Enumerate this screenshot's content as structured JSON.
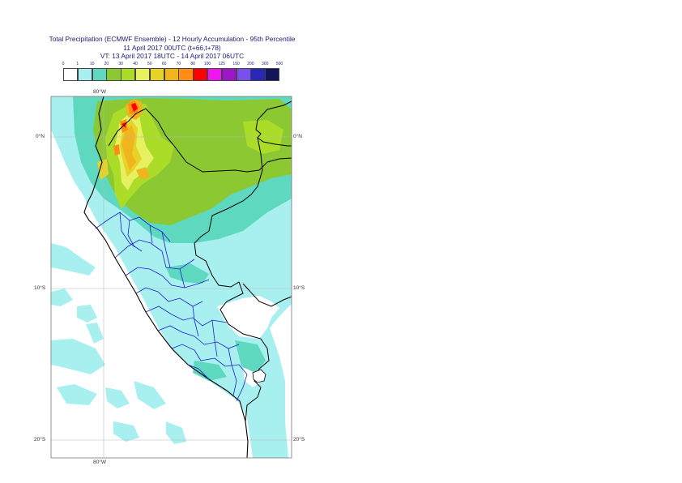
{
  "title": {
    "line1": "Total Precipitation (ECMWF Ensemble) - 12 Hourly Accumulation - 95th Percentile",
    "line2": "11 April 2017 00UTC (t+66,t+78)",
    "line3": "VT: 13 April 2017 18UTC - 14 April 2017 06UTC"
  },
  "legend": {
    "thresholds": [
      "0",
      "1",
      "10",
      "20",
      "30",
      "40",
      "50",
      "60",
      "70",
      "80",
      "100",
      "125",
      "150",
      "200",
      "300",
      "500"
    ],
    "colors": [
      "#ffffff",
      "#a8f0f0",
      "#5fd8c0",
      "#8cc832",
      "#aadc28",
      "#e6f060",
      "#e6d228",
      "#f0b41e",
      "#ff8c14",
      "#ff0000",
      "#f014f0",
      "#a014c8",
      "#7850f0",
      "#2828b4",
      "#14145a"
    ]
  },
  "axes": {
    "lon_top": "80°W",
    "lon_bottom": "80°W",
    "lat_left": [
      "0°N",
      "10°S",
      "20°S"
    ],
    "lat_right": [
      "0°N",
      "10°S",
      "20°S"
    ]
  }
}
